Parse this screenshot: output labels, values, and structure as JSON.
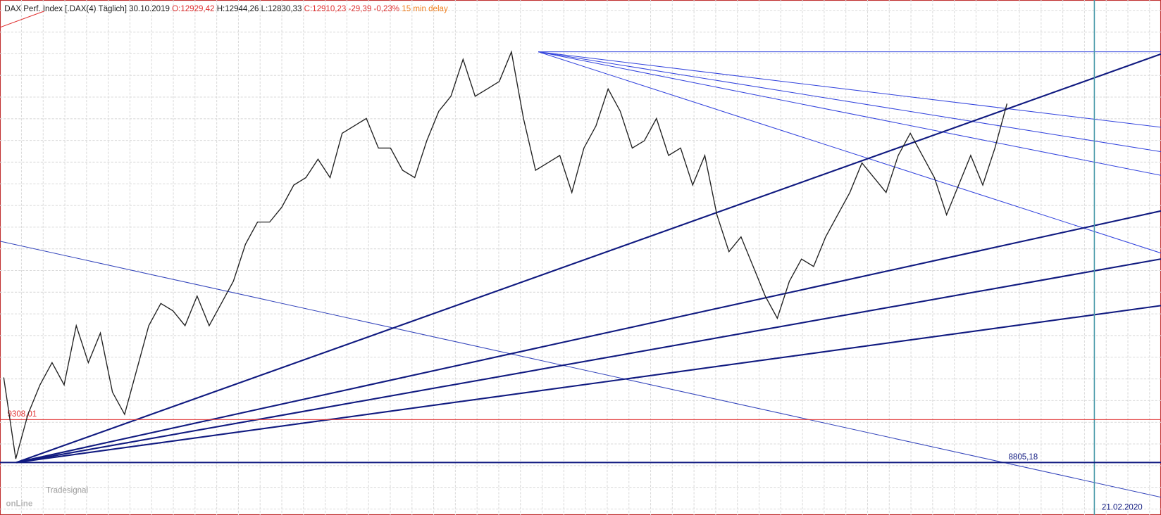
{
  "chart_data": {
    "type": "line",
    "header": {
      "name": "DAX Perf. Index [.DAX(4) Täglich] 30.10.2019",
      "open": "O:12929,42",
      "high": "H:12944,26",
      "low": "L:12830,33",
      "close": "C:12910,23",
      "change": "-29,39",
      "change_pct": "-0,23%",
      "delay": "15 min delay"
    },
    "ylim": [
      8190,
      14225
    ],
    "values": [
      9802,
      8848,
      9369,
      9715,
      9975,
      9715,
      10409,
      9975,
      10322,
      9629,
      9369,
      9889,
      10409,
      10669,
      10582,
      10409,
      10756,
      10409,
      10669,
      10929,
      11363,
      11623,
      11623,
      11796,
      12056,
      12143,
      12360,
      12143,
      12663,
      12750,
      12837,
      12490,
      12490,
      12230,
      12143,
      12576,
      12923,
      13097,
      13530,
      13097,
      13183,
      13270,
      13617,
      12837,
      12230,
      12316,
      12403,
      11970,
      12490,
      12750,
      13183,
      12923,
      12490,
      12576,
      12837,
      12403,
      12490,
      12056,
      12403,
      11709,
      11276,
      11449,
      11103,
      10756,
      10496,
      10929,
      11189,
      11103,
      11449,
      11709,
      11970,
      12316,
      12143,
      11970,
      12403,
      12663,
      12403,
      12143,
      11709,
      12056,
      12403,
      12056,
      12490,
      13010
    ],
    "color": "#222222",
    "hlines": [
      {
        "value": 9308.01,
        "label": "9308,01",
        "color": "#e03030"
      },
      {
        "value": 8805.18,
        "label": "8805,18",
        "color": "#101a80"
      }
    ],
    "vline_label": "21.02.2020",
    "logo": {
      "small": "Tradesignal",
      "big": "onLine"
    }
  }
}
